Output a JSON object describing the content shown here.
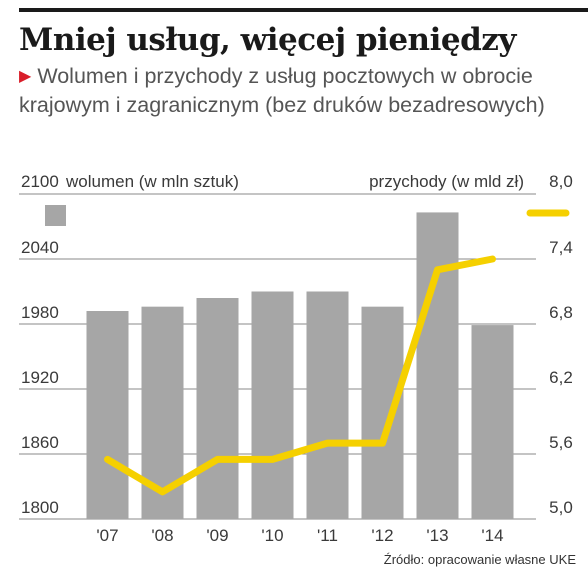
{
  "header": {
    "title": "Mniej usług, więcej pieniędzy",
    "subtitle": "Wolumen i przychody z usług pocztowych w obrocie krajowym i zagranicznym (bez druków bezadresowych)"
  },
  "footer": {
    "source": "Źródło: opracowanie własne UKE"
  },
  "colors": {
    "bars": "#a6a6a6",
    "line": "#f5d000",
    "marker": "#d91e2a",
    "grid": "#888888",
    "text": "#3a3a3a"
  },
  "chart_data": {
    "type": "bar",
    "categories": [
      "'07",
      "'08",
      "'09",
      "'10",
      "'11",
      "'12",
      "'13",
      "'14"
    ],
    "series": [
      {
        "type": "bar",
        "axis": "left",
        "values": [
          1992,
          1996,
          2004,
          2010,
          2010,
          1996,
          2083,
          1979
        ]
      },
      {
        "type": "line",
        "axis": "right",
        "values": [
          5.55,
          5.25,
          5.55,
          5.55,
          5.7,
          5.7,
          7.3,
          7.4
        ]
      }
    ],
    "y_left": {
      "label": "wolumen (w mln sztuk)",
      "ticks": [
        "2100",
        "2040",
        "1980",
        "1920",
        "1860",
        "1800"
      ],
      "range": [
        1800,
        2100
      ]
    },
    "y_right": {
      "label": "przychody (w mld zł)",
      "ticks": [
        "8,0",
        "7,4",
        "6,8",
        "6,2",
        "5,6",
        "5,0"
      ],
      "range": [
        5.0,
        8.0
      ]
    },
    "legend": "top, swatches at left and right",
    "grid": true
  }
}
